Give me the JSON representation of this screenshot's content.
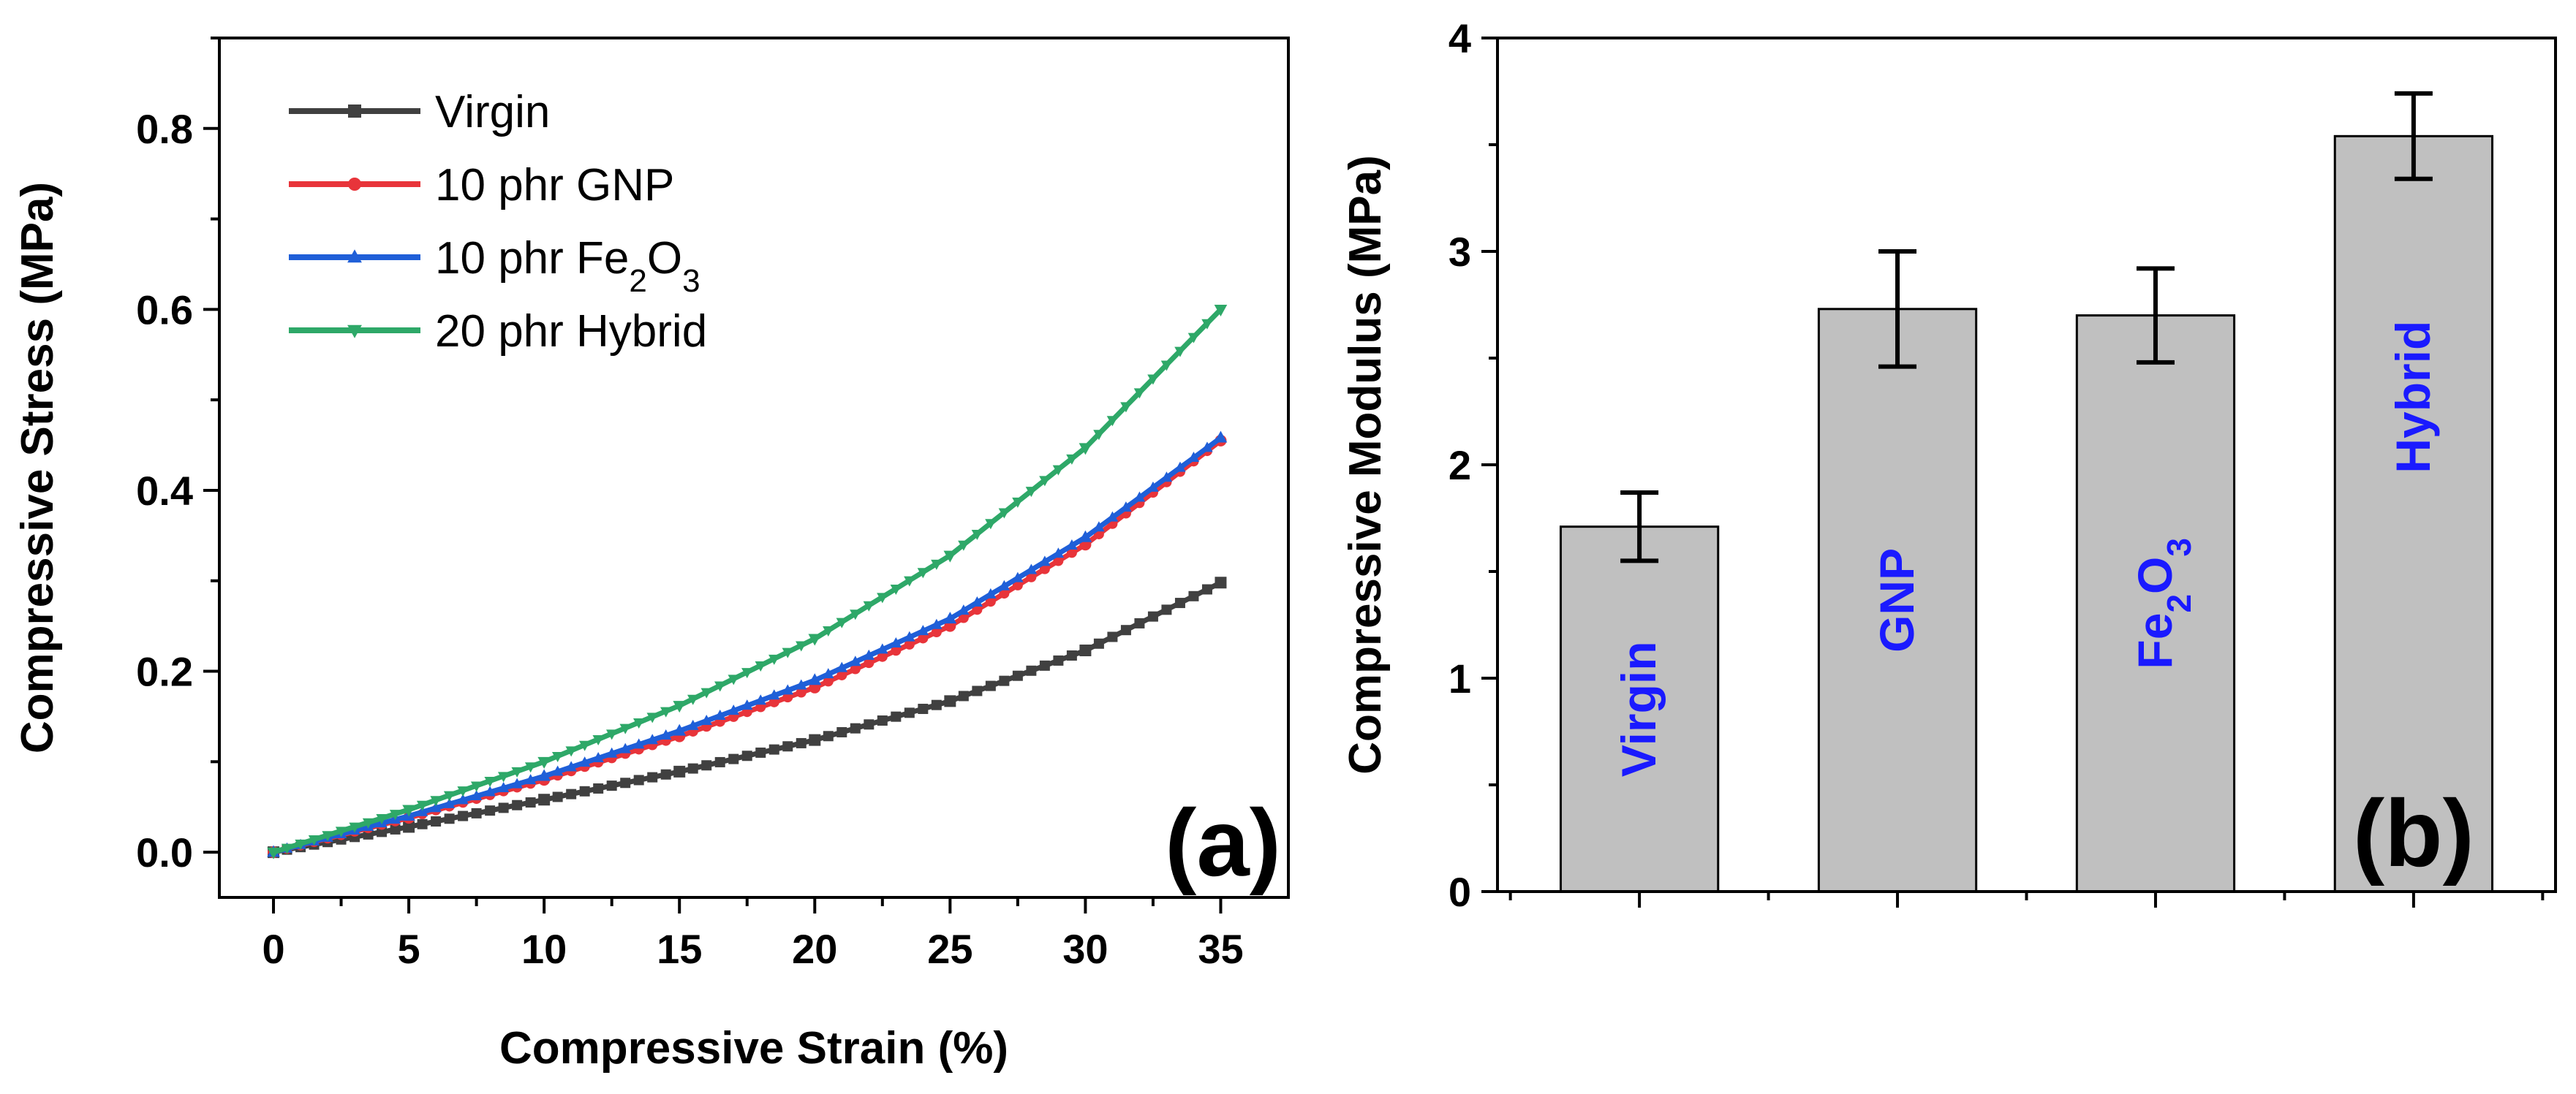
{
  "chart_data": [
    {
      "type": "line",
      "panel_label": "(a)",
      "xlabel": "Compressive Strain (%)",
      "ylabel": "Compressive Stress (MPa)",
      "xlim": [
        -2,
        37.5
      ],
      "ylim": [
        -0.05,
        0.9
      ],
      "xticks": [
        "0",
        "5",
        "10",
        "15",
        "20",
        "25",
        "30",
        "35"
      ],
      "yticks": [
        "0.0",
        "0.2",
        "0.4",
        "0.6",
        "0.8"
      ],
      "grid": false,
      "legend_position": "top-left",
      "series": [
        {
          "name": "Virgin",
          "color": "#404040",
          "marker": "square",
          "x": [
            0,
            5,
            10,
            15,
            20,
            25,
            30,
            35
          ],
          "y": [
            0,
            0.028,
            0.058,
            0.089,
            0.124,
            0.167,
            0.223,
            0.298
          ]
        },
        {
          "name": "10 phr GNP",
          "color": "#e8343a",
          "marker": "circle",
          "x": [
            0,
            5,
            10,
            15,
            20,
            25,
            30,
            35
          ],
          "y": [
            0,
            0.038,
            0.08,
            0.128,
            0.182,
            0.25,
            0.34,
            0.455
          ]
        },
        {
          "name_parts": [
            "10 phr Fe",
            "2",
            "O",
            "3"
          ],
          "color": "#1f5fd8",
          "marker": "triangle-up",
          "x": [
            0,
            5,
            10,
            15,
            20,
            25,
            30,
            35
          ],
          "y": [
            0,
            0.04,
            0.084,
            0.134,
            0.19,
            0.258,
            0.348,
            0.458
          ]
        },
        {
          "name": "20 phr Hybrid",
          "color": "#2ea868",
          "marker": "triangle-down",
          "x": [
            0,
            5,
            10,
            15,
            20,
            25,
            30,
            35
          ],
          "y": [
            0,
            0.047,
            0.1,
            0.162,
            0.236,
            0.328,
            0.447,
            0.6
          ]
        }
      ]
    },
    {
      "type": "bar",
      "panel_label": "(b)",
      "ylabel": "Compressive Modulus (MPa)",
      "ylim": [
        0,
        4
      ],
      "yticks": [
        "0",
        "1",
        "2",
        "3",
        "4"
      ],
      "grid": false,
      "bar_color": "#c0c0c0",
      "label_color": "#1a1aff",
      "categories": [
        {
          "label_parts": [
            "Virgin"
          ]
        },
        {
          "label_parts": [
            "GNP"
          ]
        },
        {
          "label_parts": [
            "Fe",
            "2",
            "O",
            "3"
          ]
        },
        {
          "label_parts": [
            "Hybrid"
          ]
        }
      ],
      "values": [
        1.71,
        2.73,
        2.7,
        3.54
      ],
      "errors": [
        0.16,
        0.27,
        0.22,
        0.2
      ]
    }
  ]
}
